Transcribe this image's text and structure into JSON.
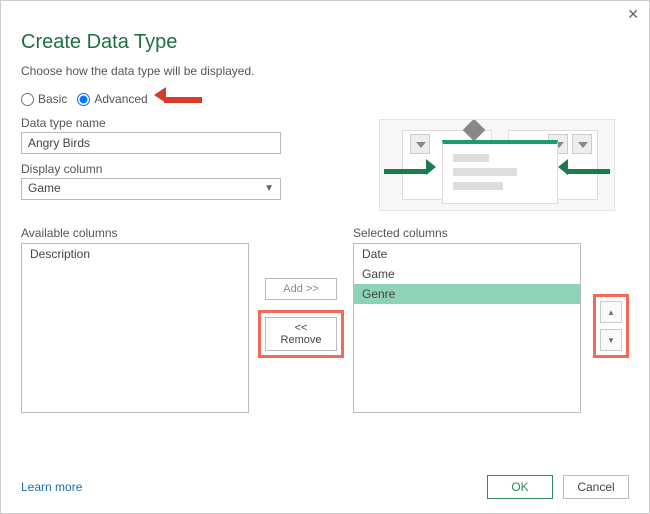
{
  "dialog": {
    "title": "Create Data Type",
    "subtitle": "Choose how the data type will be displayed."
  },
  "radios": {
    "basic": {
      "label": "Basic",
      "checked": false
    },
    "advanced": {
      "label": "Advanced",
      "checked": true
    }
  },
  "fields": {
    "name_label": "Data type name",
    "name_value": "Angry Birds",
    "display_label": "Display column",
    "display_value": "Game"
  },
  "available": {
    "label": "Available columns",
    "items": [
      "Description"
    ]
  },
  "selected": {
    "label": "Selected columns",
    "items": [
      "Date",
      "Game",
      "Genre"
    ],
    "selected_index": 2
  },
  "buttons": {
    "add": "Add >>",
    "remove": "<< Remove",
    "ok": "OK",
    "cancel": "Cancel",
    "up": "▴",
    "down": "▾",
    "close": "✕"
  },
  "links": {
    "learn": "Learn more"
  },
  "colors": {
    "accent_green": "#1d7044",
    "highlight_red": "#f46a5a",
    "arrow_red": "#d63a2a",
    "sel_green": "#8fd3b6",
    "link_blue": "#1a6fb3"
  }
}
